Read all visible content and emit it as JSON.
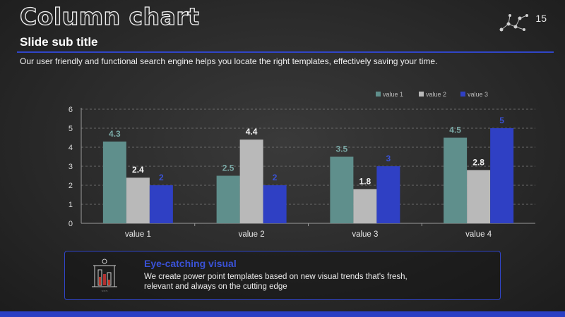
{
  "slide": {
    "title": "Column chart",
    "page_number": "15",
    "subtitle": "Slide sub title",
    "description": "Our user friendly and functional search engine helps you locate the right templates, effectively saving your time."
  },
  "callout": {
    "title": "Eye-catching visual",
    "text": "We create power point templates based on new visual trends that's fresh, relevant and always on the cutting edge",
    "icon": "lab-flasks-icon"
  },
  "colors": {
    "series1": "#5f8f8c",
    "series2": "#b9b9b9",
    "series3": "#2f40c4",
    "label1": "#7aa9a6",
    "label2": "#f2f2f2",
    "label3": "#3a52d6",
    "accent": "#3045c8"
  },
  "chart_data": {
    "type": "bar",
    "categories": [
      "value 1",
      "value 2",
      "value 3",
      "value 4"
    ],
    "series": [
      {
        "name": "value 1",
        "values": [
          4.3,
          2.5,
          3.5,
          4.5
        ]
      },
      {
        "name": "value 2",
        "values": [
          2.4,
          4.4,
          1.8,
          2.8
        ]
      },
      {
        "name": "value 3",
        "values": [
          2,
          2,
          3,
          5
        ]
      }
    ],
    "yticks": [
      "0",
      "1",
      "2",
      "3",
      "4",
      "5",
      "6"
    ],
    "ylim": [
      0,
      6
    ],
    "grid": true,
    "legend": "top-right",
    "title": "",
    "xlabel": "",
    "ylabel": ""
  }
}
